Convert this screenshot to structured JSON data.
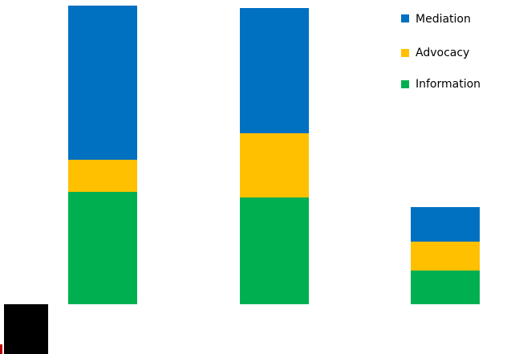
{
  "chart_data": {
    "type": "bar",
    "stacked": true,
    "categories": [
      "",
      "",
      ""
    ],
    "series": [
      {
        "name": "Information",
        "color": "#00B050",
        "values": [
          140,
          133,
          42
        ]
      },
      {
        "name": "Advocacy",
        "color": "#FFC000",
        "values": [
          40,
          80,
          36
        ]
      },
      {
        "name": "Mediation",
        "color": "#0070C0",
        "values": [
          192,
          156,
          43
        ]
      }
    ],
    "title": "",
    "xlabel": "",
    "ylabel": "",
    "ylim": [
      0,
      372
    ],
    "grid": false,
    "axes_visible": false,
    "legend": {
      "position": "top-right",
      "order": [
        "Mediation",
        "Advocacy",
        "Information"
      ]
    }
  }
}
